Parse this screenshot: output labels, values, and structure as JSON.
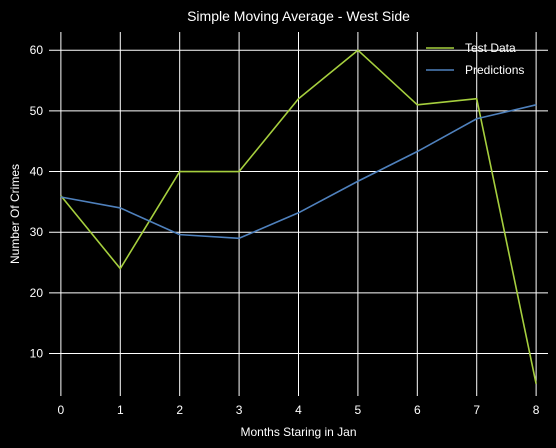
{
  "chart_data": {
    "type": "line",
    "title": "Simple Moving Average - West Side",
    "xlabel": "Months Staring in Jan",
    "ylabel": "Number Of Crimes",
    "x": [
      0,
      1,
      2,
      3,
      4,
      5,
      6,
      7,
      8
    ],
    "xticks": [
      "0",
      "1",
      "2",
      "3",
      "4",
      "5",
      "6",
      "7",
      "8"
    ],
    "yticks": [
      10,
      20,
      30,
      40,
      50,
      60
    ],
    "xlim": [
      -0.2,
      8.2
    ],
    "ylim": [
      3,
      63
    ],
    "grid": true,
    "legend_position": "top-right",
    "series": [
      {
        "name": "Test Data",
        "color": "#a6cf3e",
        "values": [
          36,
          24,
          40,
          40,
          52,
          60,
          51,
          52,
          5
        ]
      },
      {
        "name": "Predictions",
        "color": "#4f81bd",
        "values": [
          35.8,
          34,
          29.6,
          29,
          33.2,
          38.4,
          43.3,
          48.7,
          51
        ]
      }
    ]
  }
}
